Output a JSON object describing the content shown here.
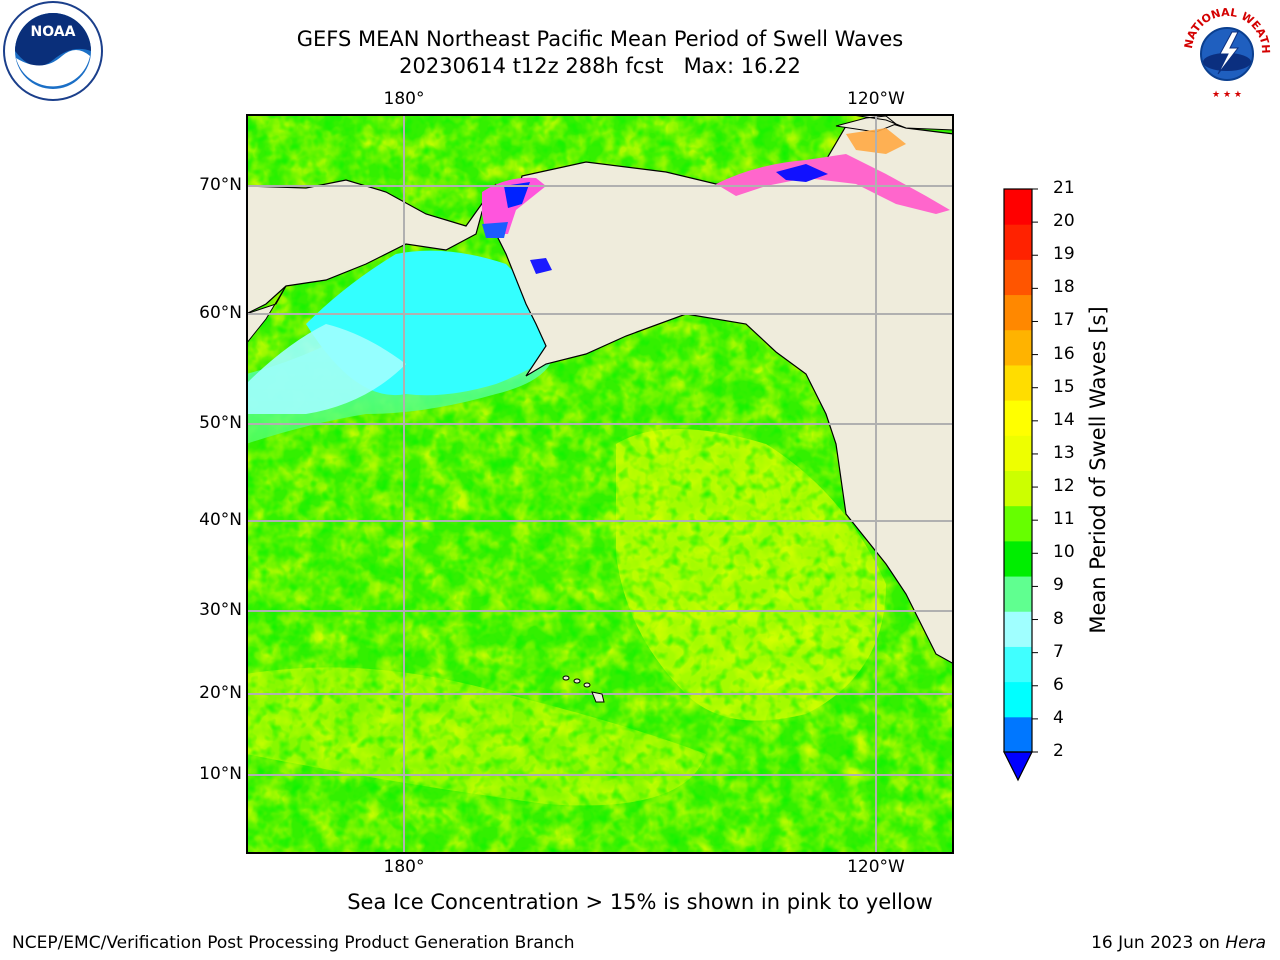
{
  "title": {
    "line1": "GEFS MEAN Northeast Pacific Mean Period of Swell Waves",
    "line2": "20230614 t12z 288h fcst   Max: 16.22"
  },
  "logos": {
    "left": {
      "name": "noaa-logo",
      "text": "NOAA",
      "ring_text": "NATIONAL OCEANIC AND ATMOSPHERIC ADMINISTRATION · U.S. DEPARTMENT OF COMMERCE"
    },
    "right": {
      "name": "nws-logo",
      "ring_text": "NATIONAL WEATHER SERVICE"
    }
  },
  "map": {
    "lon_labels_top": [
      "180°",
      "120°W"
    ],
    "lon_labels_bottom": [
      "180°",
      "120°W"
    ],
    "lat_labels": [
      "70°N",
      "60°N",
      "50°N",
      "40°N",
      "30°N",
      "20°N",
      "10°N"
    ],
    "land_color": "#efecdc",
    "coast_color": "#000000",
    "grid_color": "#b0b0b0"
  },
  "colorbar": {
    "title": "Mean Period of Swell Waves [s]",
    "ticks": [
      "2",
      "4",
      "6",
      "7",
      "8",
      "9",
      "10",
      "11",
      "12",
      "13",
      "14",
      "15",
      "16",
      "17",
      "18",
      "19",
      "20",
      "21"
    ],
    "colors": [
      "#0077ff",
      "#00ffff",
      "#40ffff",
      "#a0ffff",
      "#60ff90",
      "#00ee00",
      "#66ff00",
      "#ccff00",
      "#eeff00",
      "#ffff00",
      "#ffdd00",
      "#ffb300",
      "#ff8800",
      "#ff5500",
      "#ff2200",
      "#ff0000"
    ],
    "under_color": "#0000ff"
  },
  "annotation": "Sea Ice Concentration > 15% is shown in pink to yellow",
  "footer": {
    "left": "NCEP/EMC/Verification Post Processing Product Generation Branch",
    "right_date": "16 Jun 2023 on ",
    "right_host": "Hera"
  }
}
